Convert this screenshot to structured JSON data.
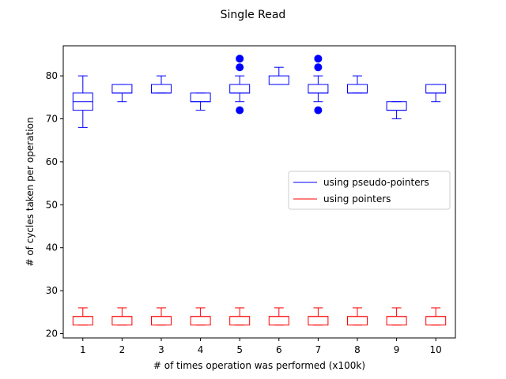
{
  "chart_data": {
    "type": "box",
    "title": "Single Read",
    "xlabel": "# of times operation was performed (x100k)",
    "ylabel": "# of cycles taken per operation",
    "categories": [
      "1",
      "2",
      "3",
      "4",
      "5",
      "6",
      "7",
      "8",
      "9",
      "10"
    ],
    "xlim": [
      0.5,
      10.5
    ],
    "ylim": [
      19,
      87
    ],
    "yticks": [
      20,
      30,
      40,
      50,
      60,
      70,
      80
    ],
    "grid": false,
    "legend_position": "center-right",
    "series": [
      {
        "name": "using pseudo-pointers",
        "color": "#0000ff",
        "boxes": [
          {
            "whislo": 68,
            "q1": 72,
            "med": 74,
            "q3": 76,
            "whishi": 80,
            "fliers": []
          },
          {
            "whislo": 74,
            "q1": 76,
            "med": 76,
            "q3": 78,
            "whishi": 78,
            "fliers": []
          },
          {
            "whislo": 76,
            "q1": 76,
            "med": 76,
            "q3": 78,
            "whishi": 80,
            "fliers": []
          },
          {
            "whislo": 72,
            "q1": 74,
            "med": 74,
            "q3": 76,
            "whishi": 76,
            "fliers": []
          },
          {
            "whislo": 74,
            "q1": 76,
            "med": 76,
            "q3": 78,
            "whishi": 80,
            "fliers": [
              72,
              82,
              84
            ]
          },
          {
            "whislo": 78,
            "q1": 78,
            "med": 78,
            "q3": 80,
            "whishi": 82,
            "fliers": []
          },
          {
            "whislo": 74,
            "q1": 76,
            "med": 76,
            "q3": 78,
            "whishi": 80,
            "fliers": [
              72,
              82,
              84
            ]
          },
          {
            "whislo": 76,
            "q1": 76,
            "med": 76,
            "q3": 78,
            "whishi": 80,
            "fliers": []
          },
          {
            "whislo": 70,
            "q1": 72,
            "med": 72,
            "q3": 74,
            "whishi": 74,
            "fliers": []
          },
          {
            "whislo": 74,
            "q1": 76,
            "med": 76,
            "q3": 78,
            "whishi": 78,
            "fliers": []
          }
        ]
      },
      {
        "name": "using pointers",
        "color": "#ff0000",
        "boxes": [
          {
            "whislo": 22,
            "q1": 22,
            "med": 24,
            "q3": 24,
            "whishi": 26,
            "fliers": []
          },
          {
            "whislo": 22,
            "q1": 22,
            "med": 24,
            "q3": 24,
            "whishi": 26,
            "fliers": []
          },
          {
            "whislo": 22,
            "q1": 22,
            "med": 24,
            "q3": 24,
            "whishi": 26,
            "fliers": []
          },
          {
            "whislo": 22,
            "q1": 22,
            "med": 24,
            "q3": 24,
            "whishi": 26,
            "fliers": []
          },
          {
            "whislo": 22,
            "q1": 22,
            "med": 24,
            "q3": 24,
            "whishi": 26,
            "fliers": []
          },
          {
            "whislo": 22,
            "q1": 22,
            "med": 24,
            "q3": 24,
            "whishi": 26,
            "fliers": []
          },
          {
            "whislo": 22,
            "q1": 22,
            "med": 24,
            "q3": 24,
            "whishi": 26,
            "fliers": []
          },
          {
            "whislo": 22,
            "q1": 22,
            "med": 24,
            "q3": 24,
            "whishi": 26,
            "fliers": []
          },
          {
            "whislo": 22,
            "q1": 22,
            "med": 24,
            "q3": 24,
            "whishi": 26,
            "fliers": []
          },
          {
            "whislo": 22,
            "q1": 22,
            "med": 24,
            "q3": 24,
            "whishi": 26,
            "fliers": []
          }
        ]
      }
    ]
  }
}
